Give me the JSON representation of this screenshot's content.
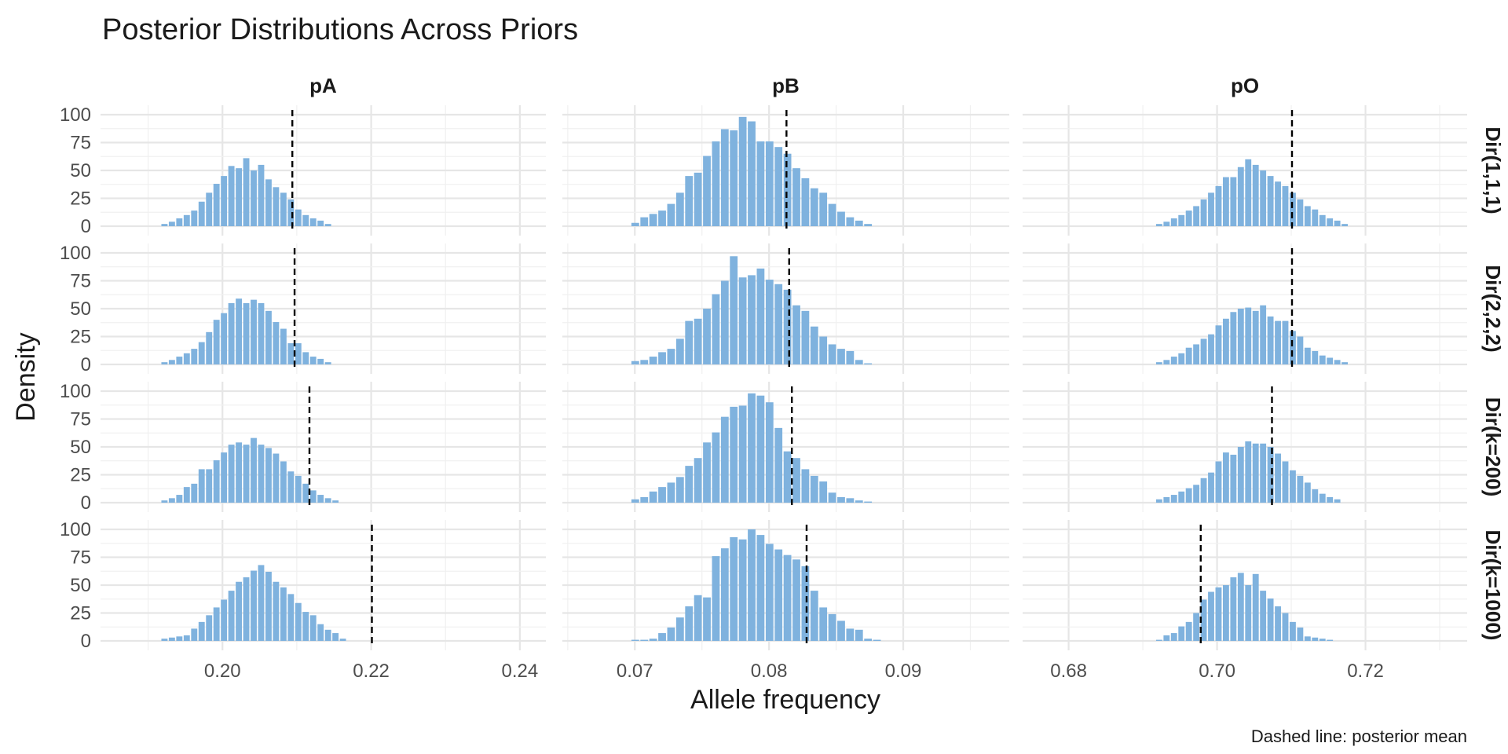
{
  "chart_data": {
    "type": "histogram",
    "title": "Posterior Distributions Across Priors",
    "xlabel": "Allele frequency",
    "ylabel": "Density",
    "caption": "Dashed line: posterior mean",
    "y_ticks": [
      0,
      25,
      50,
      75,
      100
    ],
    "ylim": [
      0,
      100
    ],
    "bar_color": "#7FB2DE",
    "mean_line_color": "#000000",
    "grid": true,
    "columns": [
      {
        "label": "pA",
        "xlim": [
          0.1836,
          0.2435
        ],
        "ticks": [
          0.2,
          0.22,
          0.24
        ],
        "tick_labels": [
          "0.20",
          "0.22",
          "0.24"
        ],
        "bin_start": 0.1917,
        "bin_width": 0.001
      },
      {
        "label": "pB",
        "xlim": [
          0.0646,
          0.0979
        ],
        "ticks": [
          0.07,
          0.08,
          0.09
        ],
        "tick_labels": [
          "0.07",
          "0.08",
          "0.09"
        ],
        "bin_start": 0.0697,
        "bin_width": 0.000667
      },
      {
        "label": "pO",
        "xlim": [
          0.6738,
          0.7337
        ],
        "ticks": [
          0.68,
          0.7,
          0.72
        ],
        "tick_labels": [
          "0.68",
          "0.70",
          "0.72"
        ],
        "bin_start": 0.6917,
        "bin_width": 0.001
      }
    ],
    "rows": [
      {
        "label": "Dir(1,1,1)",
        "panels": [
          {
            "mean": 0.2094,
            "values": [
              2,
              4,
              7,
              10,
              14,
              22,
              30,
              38,
              45,
              54,
              52,
              61,
              50,
              55,
              42,
              35,
              30,
              24,
              15,
              10,
              7,
              5,
              2
            ]
          },
          {
            "mean": 0.0813,
            "values": [
              3,
              8,
              11,
              14,
              20,
              30,
              45,
              48,
              63,
              76,
              87,
              86,
              98,
              94,
              76,
              76,
              71,
              65,
              52,
              43,
              34,
              30,
              20,
              13,
              8,
              5,
              2
            ]
          },
          {
            "mean": 0.7101,
            "values": [
              2,
              4,
              7,
              10,
              14,
              18,
              24,
              30,
              36,
              44,
              44,
              53,
              60,
              55,
              50,
              45,
              40,
              36,
              30,
              24,
              18,
              15,
              10,
              7,
              5,
              2
            ]
          }
        ]
      },
      {
        "label": "Dir(2,2,2)",
        "panels": [
          {
            "mean": 0.2097,
            "values": [
              2,
              4,
              7,
              10,
              14,
              20,
              29,
              40,
              46,
              55,
              59,
              55,
              58,
              55,
              48,
              38,
              32,
              19,
              19,
              11,
              7,
              5,
              2
            ]
          },
          {
            "mean": 0.0815,
            "values": [
              3,
              4,
              7,
              11,
              14,
              23,
              39,
              41,
              50,
              63,
              75,
              97,
              78,
              80,
              86,
              76,
              72,
              67,
              53,
              48,
              34,
              25,
              18,
              14,
              12,
              4,
              1
            ]
          },
          {
            "mean": 0.7101,
            "values": [
              2,
              4,
              7,
              10,
              15,
              18,
              23,
              27,
              35,
              41,
              47,
              50,
              51,
              48,
              53,
              43,
              39,
              39,
              30,
              25,
              15,
              12,
              8,
              6,
              4,
              2
            ]
          }
        ]
      },
      {
        "label": "Dir(k=200)",
        "panels": [
          {
            "mean": 0.2117,
            "values": [
              2,
              4,
              7,
              14,
              17,
              30,
              30,
              38,
              45,
              52,
              54,
              52,
              58,
              52,
              49,
              44,
              37,
              28,
              24,
              17,
              11,
              7,
              4,
              2
            ]
          },
          {
            "mean": 0.0817,
            "values": [
              3,
              5,
              10,
              14,
              18,
              23,
              33,
              40,
              54,
              63,
              77,
              86,
              87,
              98,
              96,
              90,
              67,
              46,
              40,
              30,
              24,
              19,
              9,
              5,
              4,
              2,
              1
            ]
          },
          {
            "mean": 0.7074,
            "values": [
              3,
              5,
              7,
              10,
              13,
              16,
              22,
              27,
              37,
              45,
              43,
              50,
              55,
              53,
              53,
              50,
              44,
              37,
              29,
              24,
              18,
              12,
              8,
              5,
              3
            ]
          }
        ]
      },
      {
        "label": "Dir(k=1000)",
        "panels": [
          {
            "mean": 0.2201,
            "values": [
              2,
              3,
              4,
              5,
              11,
              17,
              23,
              30,
              37,
              45,
              53,
              57,
              63,
              68,
              62,
              53,
              48,
              42,
              34,
              26,
              23,
              15,
              10,
              7,
              2
            ]
          },
          {
            "mean": 0.0828,
            "values": [
              1,
              1,
              2,
              7,
              12,
              21,
              31,
              41,
              39,
              76,
              83,
              93,
              91,
              100,
              95,
              87,
              82,
              77,
              73,
              67,
              45,
              30,
              24,
              18,
              11,
              10,
              2,
              1
            ]
          },
          {
            "mean": 0.6978,
            "values": [
              1,
              5,
              7,
              13,
              17,
              25,
              37,
              44,
              48,
              50,
              57,
              61,
              50,
              60,
              45,
              38,
              31,
              25,
              17,
              12,
              4,
              3,
              2,
              1
            ]
          }
        ]
      }
    ]
  }
}
